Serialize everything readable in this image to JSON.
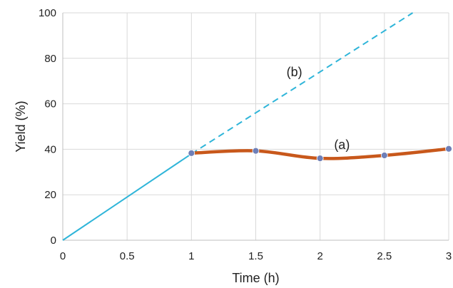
{
  "chart_data": {
    "type": "line",
    "title": "",
    "xlabel": "Time (h)",
    "ylabel": "Yield (%)",
    "xlim": [
      0,
      3
    ],
    "ylim": [
      0,
      100
    ],
    "grid": true,
    "legend": "none",
    "x_ticks": [
      "0",
      "0.5",
      "1",
      "1.5",
      "2",
      "2.5",
      "3"
    ],
    "y_ticks": [
      "0",
      "20",
      "40",
      "60",
      "80",
      "100"
    ],
    "series": [
      {
        "style": "solid",
        "color": "#2fb5d9",
        "x": [
          0,
          1
        ],
        "y": [
          0,
          38
        ]
      },
      {
        "style": "dashed",
        "color": "#2fb5d9",
        "x": [
          1,
          2.72
        ],
        "y": [
          38,
          100
        ]
      },
      {
        "style": "smooth-markers",
        "color": "#c8581b",
        "marker_color": "#6e7fb8",
        "x": [
          1,
          1.5,
          2,
          2.5,
          3
        ],
        "y": [
          38.3,
          39.3,
          36.0,
          37.3,
          40.2
        ]
      }
    ],
    "annotations": [
      {
        "text": "(b)",
        "x": 1.8,
        "y": 74
      },
      {
        "text": "(a)",
        "x": 2.17,
        "y": 42
      }
    ]
  }
}
